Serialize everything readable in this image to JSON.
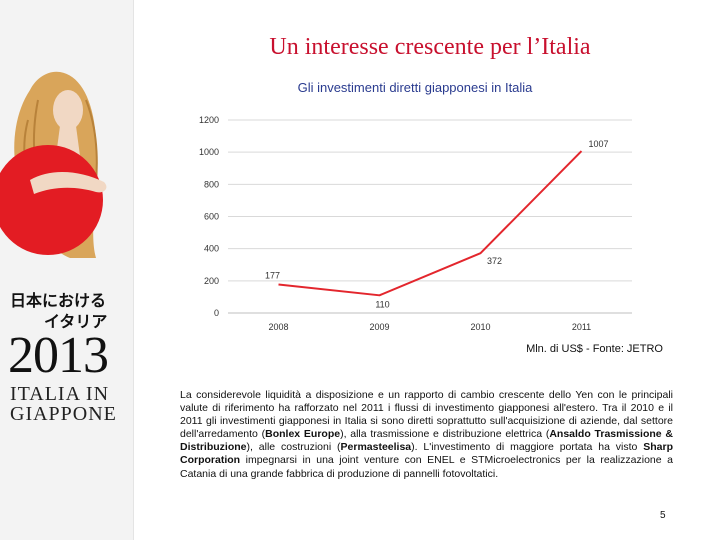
{
  "slide": {
    "title": "Un interesse crescente per l’Italia",
    "page_number": "5"
  },
  "sidebar": {
    "jp_line1": "日本における",
    "jp_line2": "イタリア",
    "year": "2013",
    "brand_line1": "ITALIA IN",
    "brand_line2": "GIAPPONE",
    "colors": {
      "sun": "#e31c23",
      "hair": "#d9a55a",
      "skin": "#f1d8c4"
    }
  },
  "chart_data": {
    "type": "line",
    "title": "Gli investimenti diretti giapponesi in Italia",
    "categories": [
      "2008",
      "2009",
      "2010",
      "2011"
    ],
    "values": [
      177,
      110,
      372,
      1007
    ],
    "data_labels": [
      "177",
      "110",
      "372",
      "1007"
    ],
    "yticks": [
      "0",
      "200",
      "400",
      "600",
      "800",
      "1000",
      "1200"
    ],
    "ylim": [
      0,
      1200
    ],
    "grid": true,
    "legend": "none",
    "line_color": "#e3262d",
    "source": "Mln. di US$ - Fonte: JETRO"
  },
  "text": {
    "p1": "La considerevole liquidità a disposizione e un rapporto di cambio crescente dello Yen con le principali valute di riferimento ha rafforzato nel 2011 i flussi di investimento giapponesi all'estero. Tra il 2010 e il 2011 gli investimenti giapponesi in Italia si sono diretti soprattutto sull'acquisizione di aziende, dal settore dell'arredamento (",
    "b1": "Bonlex Europe",
    "p2": "), alla trasmissione e distribuzione elettrica (",
    "b2": "Ansaldo Trasmissione & Distribuzione",
    "p3": "), alle costruzioni (",
    "b3": "Permasteelisa",
    "p4": "). L'investimento di maggiore portata ha visto ",
    "b4": "Sharp Corporation",
    "p5": " impegnarsi in una joint venture con ENEL e STMicroelectronics per la realizzazione a Catania di una grande fabbrica di produzione di pannelli fotovoltatici."
  }
}
